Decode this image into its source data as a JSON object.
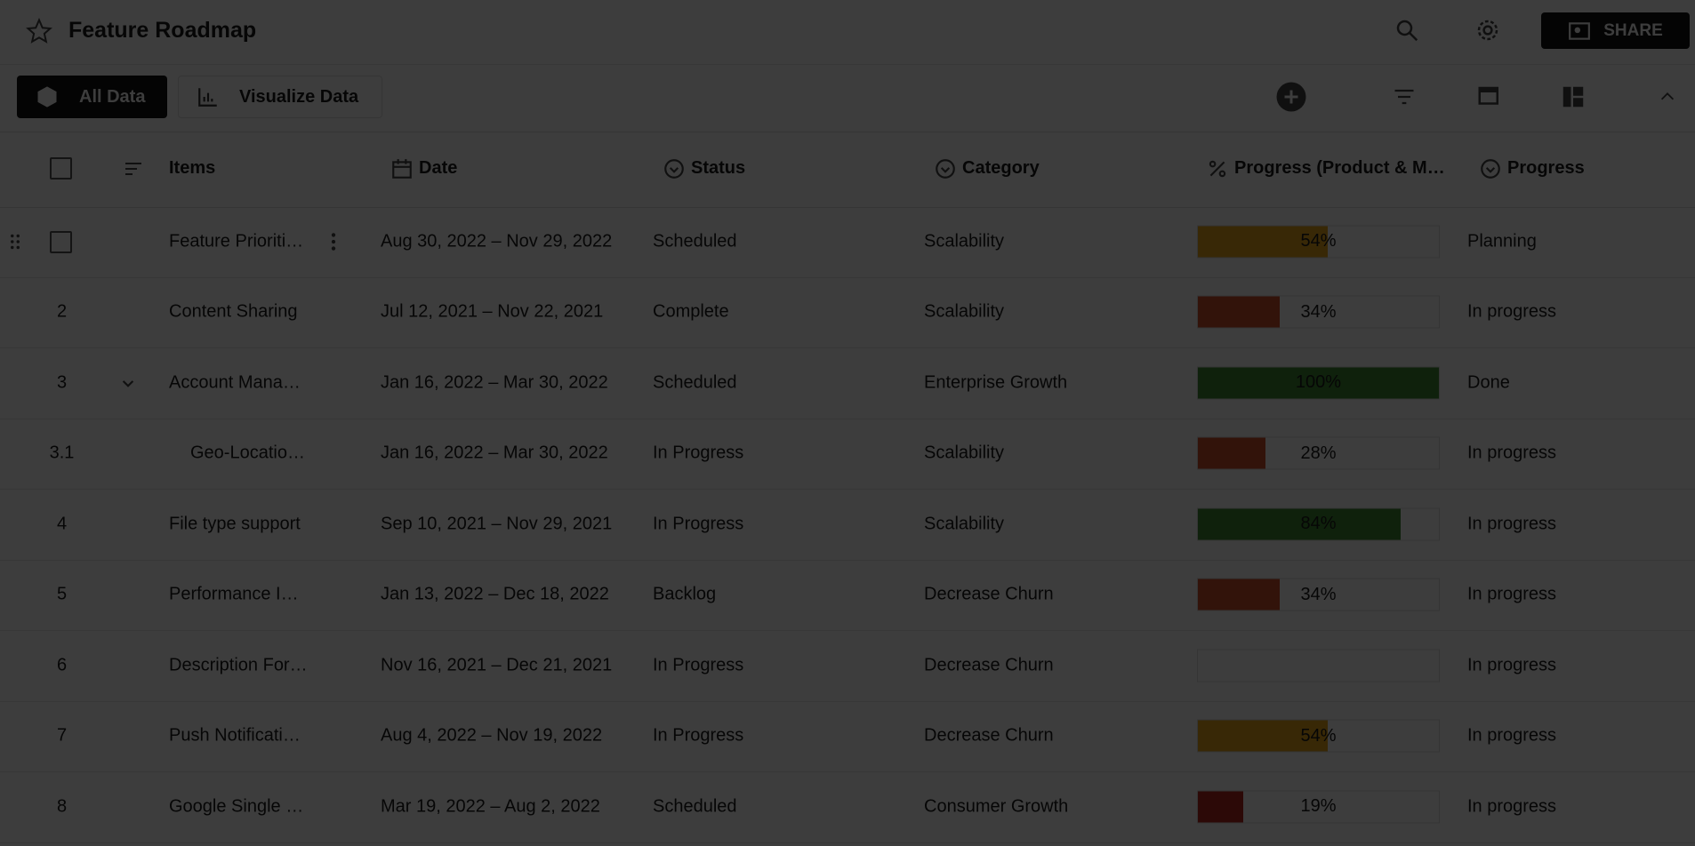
{
  "header": {
    "title": "Feature Roadmap",
    "share": "SHARE"
  },
  "toolbar": {
    "all_data": "All Data",
    "visualize": "Visualize Data"
  },
  "table": {
    "columns": [
      "Items",
      "Date",
      "Status",
      "Category",
      "Progress (Product & M…",
      "Progress"
    ],
    "rows": [
      {
        "item": "Feature Prioriti…",
        "date": "Aug 30, 2022 – Nov 29, 2022",
        "status": "Scheduled",
        "category": "Scalability",
        "progress": 54,
        "progress_label": "54%",
        "progress_color": "#e9a81c",
        "stage": "Planning"
      },
      {
        "id": "2",
        "item": "Content Sharing",
        "date": "Jul 12, 2021 – Nov 22, 2021",
        "status": "Complete",
        "category": "Scalability",
        "progress": 34,
        "progress_label": "34%",
        "progress_color": "#d2522a",
        "stage": "In progress"
      },
      {
        "id": "3",
        "item": "Account Mana…",
        "date": "Jan 16, 2022 – Mar 30, 2022",
        "status": "Scheduled",
        "category": "Enterprise Growth",
        "progress": 100,
        "progress_label": "100%",
        "progress_color": "#3f8a32",
        "stage": "Done"
      },
      {
        "id": "3.1",
        "item": "Geo-Locatio…",
        "date": "Jan 16, 2022 – Mar 30, 2022",
        "status": "In Progress",
        "category": "Scalability",
        "progress": 28,
        "progress_label": "28%",
        "progress_color": "#d2522a",
        "stage": "In progress"
      },
      {
        "id": "4",
        "item": "File type support",
        "date": "Sep 10, 2021 – Nov 29, 2021",
        "status": "In Progress",
        "category": "Scalability",
        "progress": 84,
        "progress_label": "84%",
        "progress_color": "#3f8a32",
        "stage": "In progress"
      },
      {
        "id": "5",
        "item": "Performance I…",
        "date": "Jan 13, 2022 – Dec 18, 2022",
        "status": "Backlog",
        "category": "Decrease Churn",
        "progress": 34,
        "progress_label": "34%",
        "progress_color": "#d2522a",
        "stage": "In progress"
      },
      {
        "id": "6",
        "item": "Description For…",
        "date": "Nov 16, 2021 – Dec 21, 2021",
        "status": "In Progress",
        "category": "Decrease Churn",
        "stage": "In progress"
      },
      {
        "id": "7",
        "item": "Push Notificati…",
        "date": "Aug 4, 2022 – Nov 19, 2022",
        "status": "In Progress",
        "category": "Decrease Churn",
        "progress": 54,
        "progress_label": "54%",
        "progress_color": "#e9a81c",
        "stage": "In progress"
      },
      {
        "id": "8",
        "item": "Google Single …",
        "date": "Mar 19, 2022 – Aug 2, 2022",
        "status": "Scheduled",
        "category": "Consumer Growth",
        "progress": 19,
        "progress_label": "19%",
        "progress_color": "#b8281e",
        "stage": "In progress"
      }
    ]
  }
}
